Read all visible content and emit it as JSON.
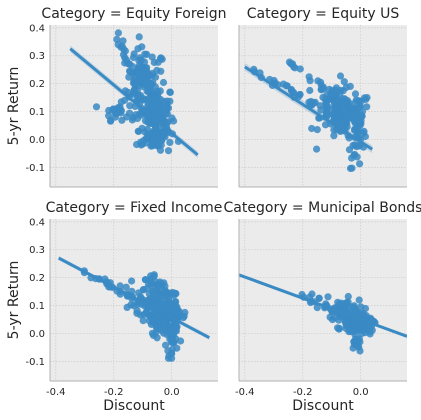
{
  "chart_data": {
    "type": "scatter",
    "facet_variable": "Category",
    "xlabel": "Discount",
    "ylabel": "5-yr Return",
    "xlim": [
      -0.42,
      0.16
    ],
    "ylim": [
      -0.17,
      0.41
    ],
    "xticks": [
      -0.4,
      -0.2,
      0.0
    ],
    "xtick_labels": [
      "-0.4",
      "-0.2",
      "0.0"
    ],
    "yticks": [
      -0.1,
      0.0,
      0.1,
      0.2,
      0.3,
      0.4
    ],
    "ytick_labels": [
      "-0.1",
      "0.0",
      "0.1",
      "0.2",
      "0.3",
      "0.4"
    ],
    "grid": true,
    "series_color": "#3a8ac4",
    "panels": [
      {
        "title": "Category = Equity Foreign",
        "regression": {
          "x": [
            -0.35,
            0.09
          ],
          "y": [
            0.325,
            -0.055
          ],
          "ci_halfwidth": 0.012
        },
        "clusters": [
          {
            "x": -0.09,
            "y": 0.18,
            "sx": 0.035,
            "sy": 0.075,
            "n": 95
          },
          {
            "x": -0.05,
            "y": 0.08,
            "sx": 0.03,
            "sy": 0.06,
            "n": 80
          },
          {
            "x": -0.19,
            "y": 0.1,
            "sx": 0.02,
            "sy": 0.015,
            "n": 25
          },
          {
            "x": -0.06,
            "y": 0.0,
            "sx": 0.03,
            "sy": 0.025,
            "n": 35
          }
        ],
        "ridges": [
          {
            "x0": -0.19,
            "y0": 0.37,
            "x1": -0.06,
            "y1": 0.05,
            "n": 45
          },
          {
            "x0": -0.12,
            "y0": 0.3,
            "x1": -0.02,
            "y1": 0.03,
            "n": 35
          }
        ]
      },
      {
        "title": "Category = Equity US",
        "regression": {
          "x": [
            -0.4,
            0.04
          ],
          "y": [
            0.26,
            -0.035
          ],
          "ci_halfwidth": 0.014
        },
        "clusters": [
          {
            "x": -0.05,
            "y": 0.08,
            "sx": 0.045,
            "sy": 0.045,
            "n": 110
          },
          {
            "x": -0.09,
            "y": 0.14,
            "sx": 0.03,
            "sy": 0.035,
            "n": 40
          },
          {
            "x": -0.01,
            "y": 0.0,
            "sx": 0.015,
            "sy": 0.05,
            "n": 30
          }
        ],
        "ridges": [
          {
            "x0": -0.36,
            "y0": 0.24,
            "x1": -0.05,
            "y1": 0.06,
            "n": 40
          },
          {
            "x0": -0.25,
            "y0": 0.28,
            "x1": -0.03,
            "y1": 0.1,
            "n": 30
          }
        ]
      },
      {
        "title": "Category = Fixed Income",
        "regression": {
          "x": [
            -0.39,
            0.13
          ],
          "y": [
            0.27,
            -0.015
          ],
          "ci_halfwidth": 0.008
        },
        "clusters": [
          {
            "x": -0.02,
            "y": 0.06,
            "sx": 0.035,
            "sy": 0.035,
            "n": 140
          },
          {
            "x": -0.08,
            "y": 0.11,
            "sx": 0.04,
            "sy": 0.035,
            "n": 60
          },
          {
            "x": 0.0,
            "y": -0.04,
            "sx": 0.01,
            "sy": 0.025,
            "n": 20
          }
        ],
        "ridges": [
          {
            "x0": -0.3,
            "y0": 0.22,
            "x1": -0.04,
            "y1": 0.08,
            "n": 30
          },
          {
            "x0": -0.1,
            "y0": 0.21,
            "x1": 0.01,
            "y1": 0.14,
            "n": 25
          }
        ]
      },
      {
        "title": "Category = Municipal Bonds",
        "regression": {
          "x": [
            -0.42,
            0.16
          ],
          "y": [
            0.21,
            -0.01
          ],
          "ci_halfwidth": 0.006
        },
        "clusters": [
          {
            "x": -0.01,
            "y": 0.04,
            "sx": 0.025,
            "sy": 0.02,
            "n": 160
          },
          {
            "x": -0.05,
            "y": 0.07,
            "sx": 0.03,
            "sy": 0.025,
            "n": 50
          },
          {
            "x": -0.01,
            "y": -0.03,
            "sx": 0.008,
            "sy": 0.015,
            "n": 15
          }
        ],
        "ridges": [
          {
            "x0": -0.2,
            "y0": 0.14,
            "x1": -0.02,
            "y1": 0.05,
            "n": 30
          }
        ]
      }
    ]
  }
}
